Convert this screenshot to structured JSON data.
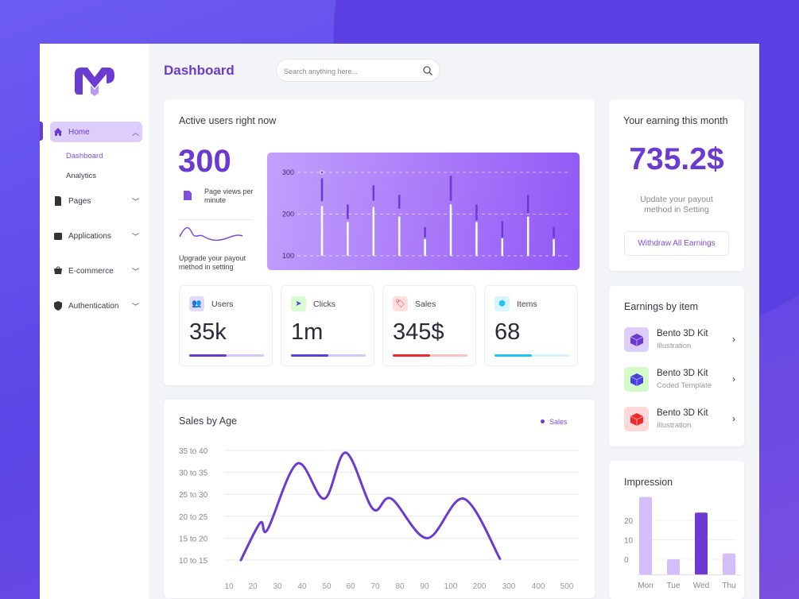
{
  "sidebar": {
    "items": [
      {
        "label": "Home",
        "icon": "home-icon",
        "expanded": true,
        "children": [
          {
            "label": "Dashboard",
            "active": true
          },
          {
            "label": "Analytics"
          }
        ]
      },
      {
        "label": "Pages",
        "icon": "file-icon"
      },
      {
        "label": "Applications",
        "icon": "folder-icon"
      },
      {
        "label": "E-commerce",
        "icon": "shop-icon"
      },
      {
        "label": "Authentication",
        "icon": "shield-icon"
      }
    ]
  },
  "header": {
    "title": "Dashboard",
    "search_placeholder": "Search anything here..."
  },
  "active_users": {
    "title": "Active users right now",
    "value": "300",
    "views_label": "Page views per minute",
    "upgrade_text": "Upgrade your payout method in setting",
    "chart_data": {
      "type": "bar",
      "yticks": [
        100,
        200,
        300
      ],
      "ylim": [
        100,
        300
      ],
      "grid": true,
      "bars": [
        {
          "value": 219,
          "range": [
            231,
            286
          ]
        },
        {
          "value": 181,
          "range": [
            188,
            223
          ]
        },
        {
          "value": 217,
          "range": [
            232,
            269
          ]
        },
        {
          "value": 194,
          "range": [
            213,
            246
          ]
        },
        {
          "value": 140,
          "range": [
            144,
            169
          ]
        },
        {
          "value": 223,
          "range": [
            232,
            292
          ]
        },
        {
          "value": 181,
          "range": [
            186,
            223
          ]
        },
        {
          "value": 142,
          "range": [
            144,
            183
          ]
        },
        {
          "value": 194,
          "range": [
            202,
            246
          ]
        },
        {
          "value": 140,
          "range": [
            144,
            169
          ]
        }
      ],
      "marker_value": 300
    }
  },
  "stats": [
    {
      "label": "Users",
      "value": "35k",
      "progress": 0.5,
      "color": "#6b3ad1",
      "track": "#d6c8fa",
      "icon_bg": "#e4d9fd",
      "icon": "users-icon"
    },
    {
      "label": "Clicks",
      "value": "1m",
      "progress": 0.5,
      "color": "#5a3fe3",
      "track": "#d3c9fa",
      "icon_bg": "#d9fbd0",
      "icon": "cursor-icon"
    },
    {
      "label": "Sales",
      "value": "345$",
      "progress": 0.5,
      "color": "#f02a2a",
      "track": "#fdc2c2",
      "icon_bg": "#ffdede",
      "icon": "tag-icon"
    },
    {
      "label": "Items",
      "value": "68",
      "progress": 0.5,
      "color": "#1fc6f5",
      "track": "#d2f2fc",
      "icon_bg": "#d6f5ff",
      "icon": "cube-icon"
    }
  ],
  "earning": {
    "title": "Your earning this month",
    "value": "735.2$",
    "subtitle": "Update your payout method in Setting",
    "button": "Withdraw All Earnings"
  },
  "earnings_by_item": {
    "title": "Earnings by item",
    "items": [
      {
        "name": "Bento 3D Kit",
        "sub": "Illustration",
        "bg": "#dccdfc",
        "color": "#6b3ad1"
      },
      {
        "name": "Bento 3D Kit",
        "sub": "Coded Template",
        "bg": "#d3fbc8",
        "color": "#4b3ee0"
      },
      {
        "name": "Bento 3D Kit",
        "sub": "Illustration",
        "bg": "#ffd9d9",
        "color": "#f02a2a"
      }
    ]
  },
  "sales_by_age": {
    "title": "Sales by Age",
    "legend": "Sales",
    "chart_data": {
      "type": "line",
      "legend": "top-right",
      "grid": true,
      "yticks": [
        "10 to 15",
        "15 to 20",
        "20 to 25",
        "25 to 30",
        "30 to 35",
        "35 to 40"
      ],
      "xticks": [
        10,
        20,
        30,
        40,
        50,
        60,
        70,
        80,
        90,
        100,
        200,
        300,
        400,
        500
      ],
      "points": [
        [
          15,
          12.5
        ],
        [
          23,
          21
        ],
        [
          26,
          19.5
        ],
        [
          38,
          34.5
        ],
        [
          49,
          26.5
        ],
        [
          58,
          37
        ],
        [
          69,
          24.2
        ],
        [
          76.5,
          26.5
        ],
        [
          91,
          17.5
        ],
        [
          145,
          26.5
        ],
        [
          270,
          12.8
        ]
      ]
    }
  },
  "impression": {
    "title": "Impression",
    "chart_data": {
      "type": "bar",
      "categories": [
        "Mon",
        "Tue",
        "Wed",
        "Thu"
      ],
      "values": [
        32,
        0,
        24,
        3
      ],
      "yticks": [
        0,
        10,
        20
      ],
      "ylim": [
        -8,
        32
      ],
      "highlight": "Wed",
      "colors": {
        "normal": "#d3bdfb",
        "highlight": "#6b3ad1"
      }
    }
  }
}
